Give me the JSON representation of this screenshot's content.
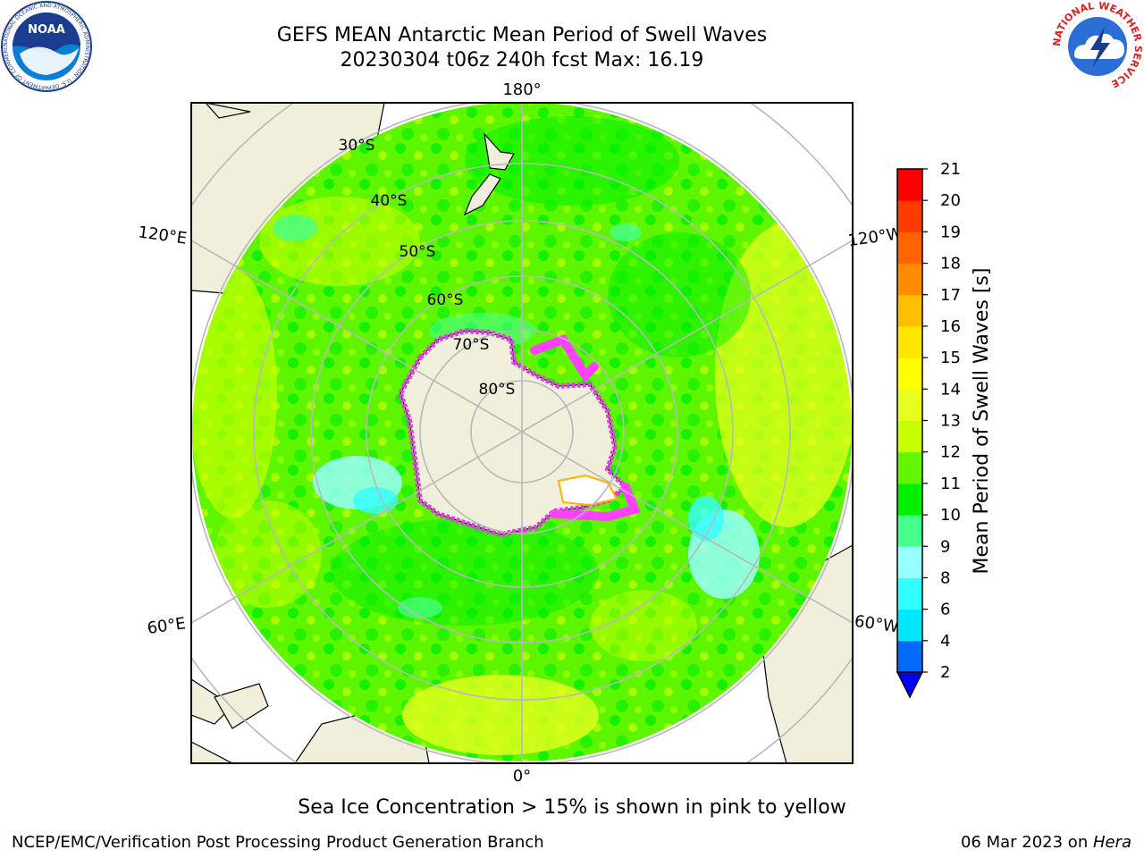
{
  "header": {
    "title_line1": "GEFS MEAN Antarctic Mean Period of Swell Waves",
    "title_line2": "20230304 t06z 240h fcst   Max: 16.19"
  },
  "logos": {
    "noaa": {
      "label": "NOAA",
      "ring_text": "NATIONAL OCEANIC AND ATMOSPHERIC ADMINISTRATION · U.S. DEPARTMENT OF COMMERCE"
    },
    "nws": {
      "ring_text": "NATIONAL WEATHER SERVICE"
    }
  },
  "map": {
    "projection": "south-polar-stereographic",
    "longitude_labels": {
      "top": "180°",
      "bottom": "0°",
      "upper_left": "120°E",
      "upper_right": "120°W",
      "lower_left": "60°E",
      "lower_right": "60°W"
    },
    "latitude_labels": [
      "30°S",
      "40°S",
      "50°S",
      "60°S",
      "70°S",
      "80°S"
    ]
  },
  "colorbar": {
    "label": "Mean Period of Swell Waves [s]",
    "ticks": [
      "2",
      "4",
      "6",
      "8",
      "9",
      "10",
      "11",
      "12",
      "13",
      "14",
      "15",
      "16",
      "17",
      "18",
      "19",
      "20",
      "21"
    ],
    "colors": [
      "#0069fa",
      "#00e6fa",
      "#32ffff",
      "#96ffff",
      "#46ff8c",
      "#00f000",
      "#64f500",
      "#c8ff00",
      "#e6ff1e",
      "#ffff00",
      "#ffe600",
      "#ffbe00",
      "#ff8c00",
      "#ff6400",
      "#ff3c00",
      "#ff0000"
    ],
    "extend_min_color": "#0000ff"
  },
  "notes": {
    "sea_ice": "Sea Ice Concentration > 15% is shown in pink to yellow"
  },
  "footer": {
    "left": "NCEP/EMC/Verification Post Processing Product Generation Branch",
    "date": "06 Mar 2023 on ",
    "machine": "Hera"
  }
}
